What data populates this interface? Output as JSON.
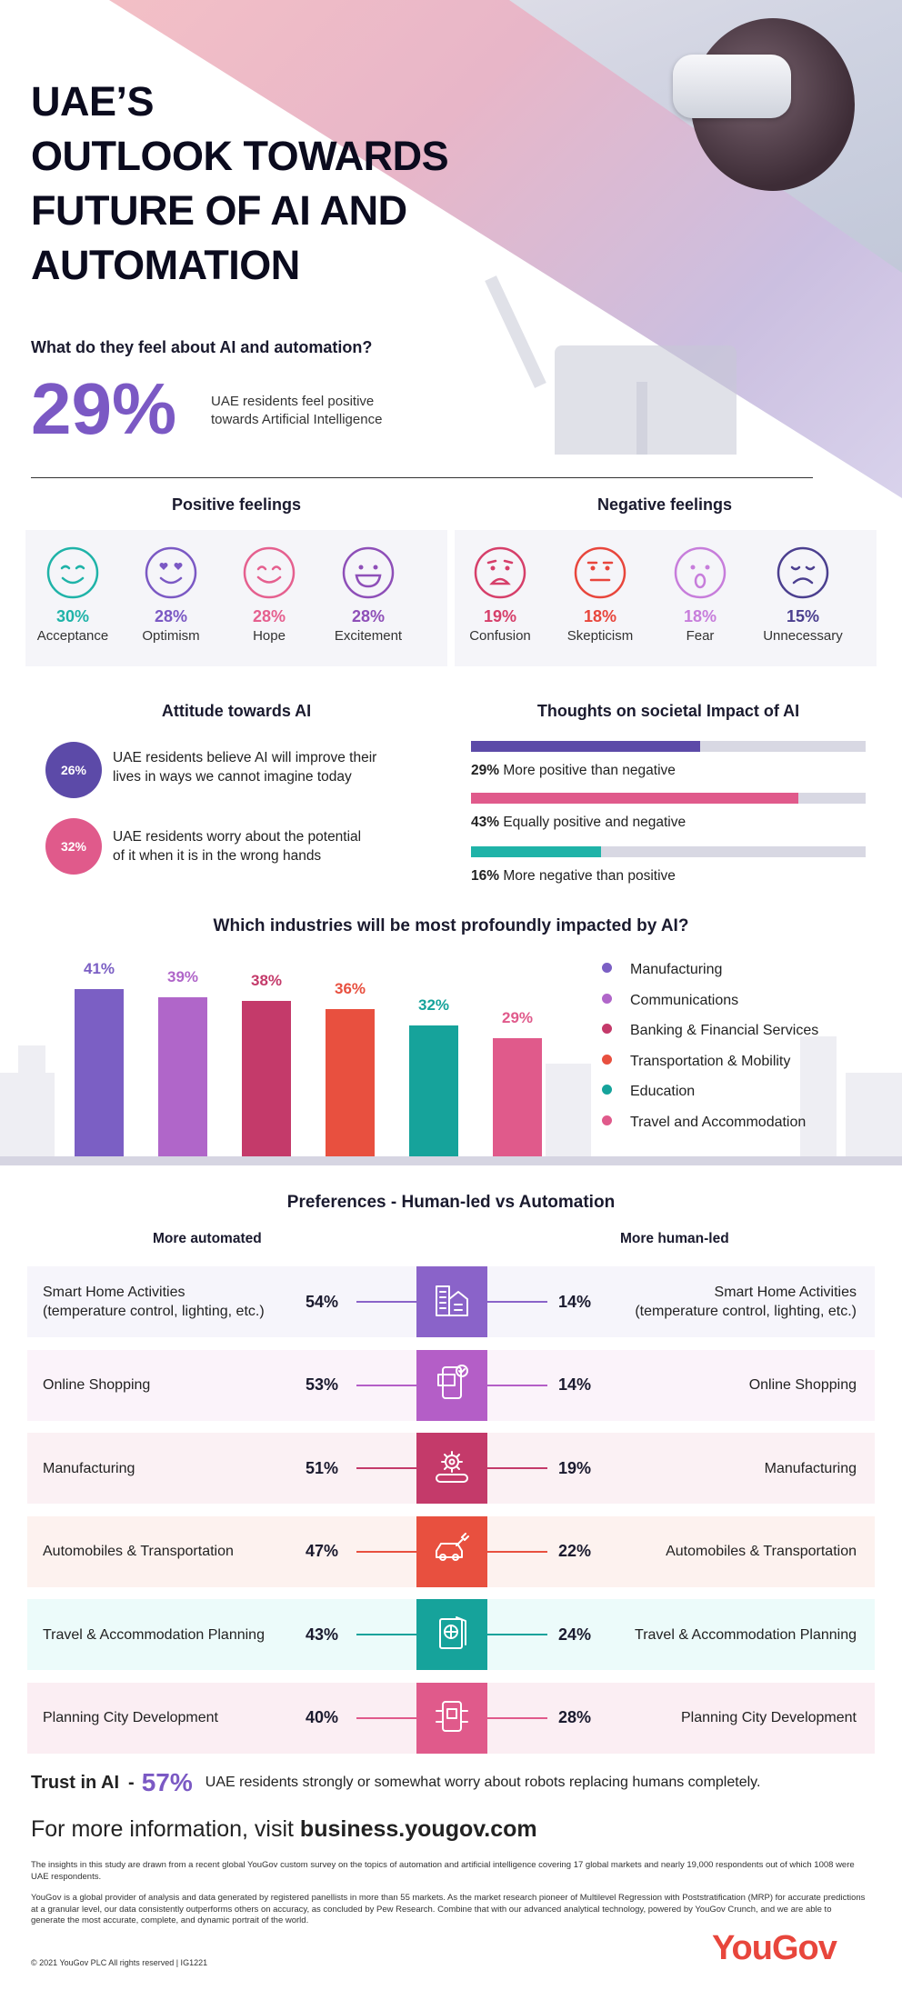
{
  "title_lines": [
    "UAE’S",
    "OUTLOOK TOWARDS",
    "FUTURE OF AI AND",
    "AUTOMATION"
  ],
  "feel_question": "What do they feel about AI and automation?",
  "headline_stat": {
    "value": "29%",
    "text_line1": "UAE residents feel positive",
    "text_line2": "towards Artificial Intelligence"
  },
  "positive": {
    "heading": "Positive feelings",
    "items": [
      {
        "pct": "30%",
        "label": "Acceptance",
        "color": "#1fb3a8",
        "icon": "content-face-icon"
      },
      {
        "pct": "28%",
        "label": "Optimism",
        "color": "#7b59c4",
        "icon": "heart-eyes-face-icon"
      },
      {
        "pct": "28%",
        "label": "Hope",
        "color": "#e5608f",
        "icon": "smiling-face-icon"
      },
      {
        "pct": "28%",
        "label": "Excitement",
        "color": "#8e4fb8",
        "icon": "grinning-face-icon"
      }
    ]
  },
  "negative": {
    "heading": "Negative feelings",
    "items": [
      {
        "pct": "19%",
        "label": "Confusion",
        "color": "#d63f6a",
        "icon": "confused-face-icon"
      },
      {
        "pct": "18%",
        "label": "Skepticism",
        "color": "#e8463c",
        "icon": "neutral-face-icon"
      },
      {
        "pct": "18%",
        "label": "Fear",
        "color": "#c77ddb",
        "icon": "surprised-face-icon"
      },
      {
        "pct": "15%",
        "label": "Unnecessary",
        "color": "#4b3f8f",
        "icon": "sad-face-icon"
      }
    ]
  },
  "attitude": {
    "heading": "Attitude towards AI",
    "items": [
      {
        "pct": "26%",
        "line1": "UAE residents believe AI will improve their",
        "line2": "lives in ways we cannot imagine today",
        "color": "#5c4aa8"
      },
      {
        "pct": "32%",
        "line1": "UAE residents worry about the potential",
        "line2": "of it when it is in the wrong hands",
        "color": "#e05a8b"
      }
    ]
  },
  "societal": {
    "heading": "Thoughts on societal Impact of AI",
    "items": [
      {
        "pct": "29%",
        "label": "More positive than negative",
        "value": 0.58,
        "color": "#5c4aa8"
      },
      {
        "pct": "43%",
        "label": "Equally positive and negative",
        "value": 0.83,
        "color": "#e05a8b"
      },
      {
        "pct": "16%",
        "label": "More negative than positive",
        "value": 0.33,
        "color": "#1fb3a8"
      }
    ]
  },
  "industries_heading": "Which industries will be most profoundly impacted by AI?",
  "chart_data": {
    "type": "bar",
    "categories": [
      "Manufacturing",
      "Communications",
      "Banking & Financial Services",
      "Transportation & Mobility",
      "Education",
      "Travel and Accommodation"
    ],
    "values": [
      41,
      39,
      38,
      36,
      32,
      29
    ],
    "labels": [
      "41%",
      "39%",
      "38%",
      "36%",
      "32%",
      "29%"
    ],
    "colors": [
      "#7b5fc4",
      "#b066c9",
      "#c43a6a",
      "#e8503f",
      "#16a39b",
      "#e05a8b"
    ],
    "title": "Which industries will be most profoundly impacted by AI?",
    "legend": "right",
    "grid": false
  },
  "preferences": {
    "heading": "Preferences - Human-led vs Automation",
    "left_heading": "More automated",
    "right_heading": "More human-led",
    "rows": [
      {
        "label_l1": "Smart Home Activities",
        "label_l2": "(temperature control, lighting, etc.)",
        "automated": "54%",
        "human": "14%",
        "color": "#8a63c9",
        "bg": "#f6f5fb",
        "icon": "smart-home-buildings-icon"
      },
      {
        "label_l1": "Online Shopping",
        "label_l2": "",
        "automated": "53%",
        "human": "14%",
        "color": "#b45ec7",
        "bg": "#fbf3fa",
        "icon": "online-shopping-phone-icon"
      },
      {
        "label_l1": "Manufacturing",
        "label_l2": "",
        "automated": "51%",
        "human": "19%",
        "color": "#c43a6a",
        "bg": "#fbf1f4",
        "icon": "gear-conveyor-icon"
      },
      {
        "label_l1": "Automobiles & Transportation",
        "label_l2": "",
        "automated": "47%",
        "human": "22%",
        "color": "#e8503f",
        "bg": "#fdf2ef",
        "icon": "car-wrench-icon"
      },
      {
        "label_l1": "Travel & Accommodation Planning",
        "label_l2": "",
        "automated": "43%",
        "human": "24%",
        "color": "#16a39b",
        "bg": "#ecfbfa",
        "icon": "passport-globe-icon"
      },
      {
        "label_l1": "Planning City Development",
        "label_l2": "",
        "automated": "40%",
        "human": "28%",
        "color": "#e05a8b",
        "bg": "#fbeef3",
        "icon": "city-planning-phone-icon"
      }
    ]
  },
  "trust": {
    "label": "Trust in AI",
    "dash": "-",
    "pct": "57%",
    "text": "UAE residents strongly or somewhat worry about robots replacing humans completely."
  },
  "more_info": {
    "prefix": "For more information, visit",
    "link": "business.yougov.com"
  },
  "footnote1": "The insights in this study are drawn from a recent global YouGov custom survey on the topics of automation and artificial intelligence covering 17 global markets and nearly 19,000 respondents out of which 1008 were UAE respondents.",
  "footnote2": "YouGov is a global provider of analysis and data generated by registered panellists in more than 55 markets. As the market research pioneer of Multilevel Regression with Poststratification (MRP) for accurate predictions at a granular level, our data consistently outperforms others on accuracy, as concluded by Pew Research. Combine that with our advanced analytical technology, powered by YouGov Crunch, and we are able to generate the most accurate, complete, and dynamic portrait of the world.",
  "copyright": "© 2021 YouGov PLC All rights reserved | IG1221",
  "logo": "YouGov"
}
